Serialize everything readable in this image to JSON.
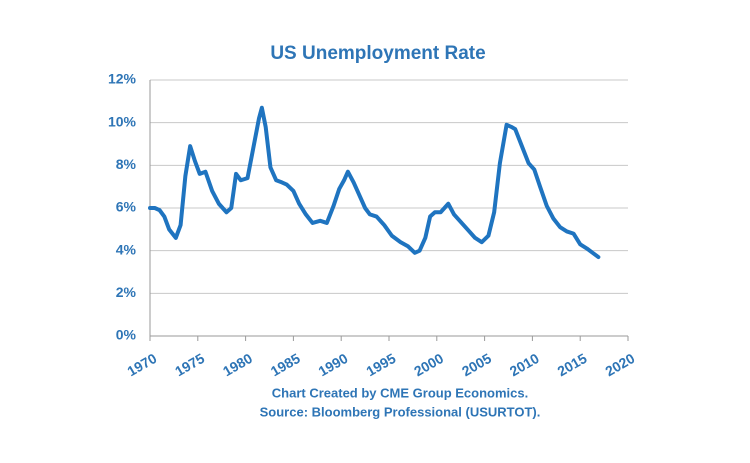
{
  "chart_data": {
    "type": "line",
    "title": "US Unemployment Rate",
    "annotations": [
      "Chart Created by CME Group Economics.",
      "Source: Bloomberg Professional (USURTOT)."
    ],
    "x": [
      1970.0,
      1970.5,
      1971.0,
      1971.5,
      1972.0,
      1972.7,
      1973.2,
      1973.7,
      1974.2,
      1974.7,
      1975.2,
      1975.8,
      1976.5,
      1977.2,
      1978.0,
      1978.5,
      1979.0,
      1979.5,
      1980.2,
      1980.8,
      1981.4,
      1981.7,
      1982.1,
      1982.6,
      1983.2,
      1983.8,
      1984.3,
      1985.0,
      1985.6,
      1986.3,
      1987.0,
      1987.8,
      1988.5,
      1989.2,
      1989.8,
      1990.3,
      1990.7,
      1991.3,
      1991.9,
      1992.5,
      1993.0,
      1993.7,
      1994.5,
      1995.3,
      1996.2,
      1997.0,
      1997.7,
      1998.2,
      1998.8,
      1999.3,
      1999.8,
      2000.4,
      2001.2,
      2001.8,
      2002.6,
      2003.4,
      2004.0,
      2004.7,
      2005.4,
      2006.0,
      2006.6,
      2007.3,
      2007.8,
      2008.2,
      2008.9,
      2009.6,
      2010.2,
      2010.8,
      2011.5,
      2012.2,
      2012.9,
      2013.6,
      2014.3,
      2015.0,
      2015.7,
      2016.3,
      2016.9
    ],
    "series": [
      {
        "color": "#1f74c0",
        "values": [
          6.0,
          6.0,
          5.9,
          5.6,
          5.0,
          4.6,
          5.2,
          7.5,
          8.9,
          8.2,
          7.6,
          7.7,
          6.8,
          6.2,
          5.8,
          6.0,
          7.6,
          7.3,
          7.4,
          8.8,
          10.2,
          10.7,
          9.8,
          7.9,
          7.3,
          7.2,
          7.1,
          6.8,
          6.2,
          5.7,
          5.3,
          5.4,
          5.3,
          6.1,
          6.9,
          7.3,
          7.7,
          7.2,
          6.6,
          6.0,
          5.7,
          5.6,
          5.2,
          4.7,
          4.4,
          4.2,
          3.9,
          4.0,
          4.6,
          5.6,
          5.8,
          5.8,
          6.2,
          5.7,
          5.3,
          4.9,
          4.6,
          4.4,
          4.7,
          5.8,
          8.1,
          9.9,
          9.8,
          9.7,
          8.9,
          8.1,
          7.8,
          7.0,
          6.1,
          5.5,
          5.1,
          4.9,
          4.8,
          4.3,
          4.1,
          3.9,
          3.7
        ]
      }
    ],
    "xlim": [
      1970,
      2020
    ],
    "xticks": [
      1970,
      1975,
      1980,
      1985,
      1990,
      1995,
      2000,
      2005,
      2010,
      2015,
      2020
    ],
    "ylim": [
      0,
      12
    ],
    "yticks": [
      {
        "value": 0,
        "label": "0%"
      },
      {
        "value": 2,
        "label": "2%"
      },
      {
        "value": 4,
        "label": "4%"
      },
      {
        "value": 6,
        "label": "6%"
      },
      {
        "value": 8,
        "label": "8%"
      },
      {
        "value": 10,
        "label": "10%"
      },
      {
        "value": 12,
        "label": "12%"
      }
    ],
    "grid": true
  }
}
